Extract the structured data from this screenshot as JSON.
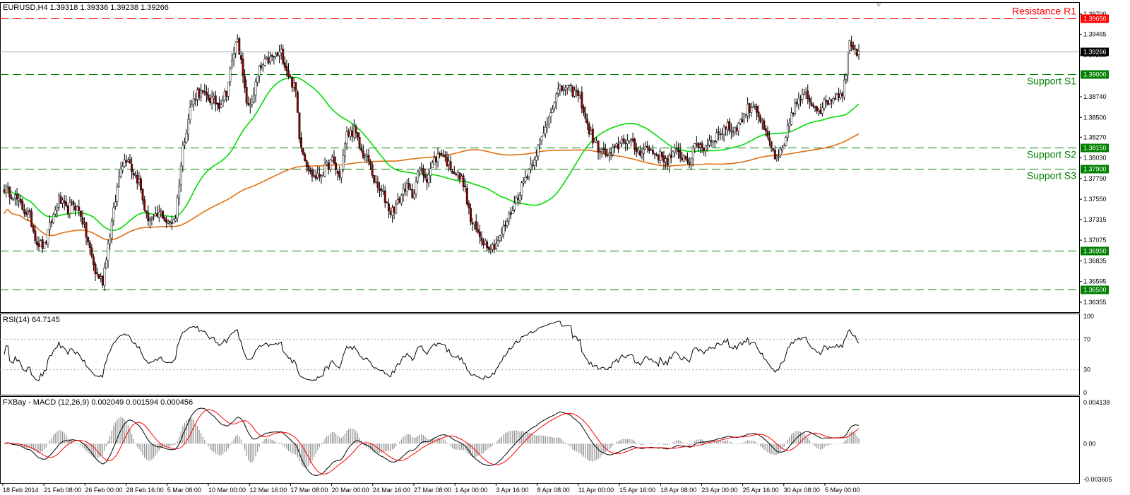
{
  "header": {
    "symbol_line": "EURUSD,H4  1.39318 1.39336 1.39238 1.39266"
  },
  "colors": {
    "resistance": "#ff0000",
    "support": "#008000",
    "ma_fast": "#00dd00",
    "ma_slow": "#e07010",
    "macd": "#000000",
    "signal": "#ff0000",
    "bull": "#ffffff",
    "bear": "#8b0000",
    "wick": "#000000"
  },
  "chart_data": [
    {
      "type": "candlestick",
      "title": "EURUSD,H4",
      "ylim": [
        1.3624,
        1.3983
      ],
      "y_ticks": [
        "1.39700",
        "1.39465",
        "1.39225",
        "1.38740",
        "1.38500",
        "1.38270",
        "1.38030",
        "1.37790",
        "1.37550",
        "1.37315",
        "1.37075",
        "1.36835",
        "1.36595",
        "1.36355"
      ],
      "x_ticks": [
        "18 Feb 2014",
        "21 Feb 08:00",
        "26 Feb 00:00",
        "28 Feb 16:00",
        "5 Mar 08:00",
        "10 Mar 00:00",
        "12 Mar 16:00",
        "17 Mar 08:00",
        "20 Mar 00:00",
        "24 Mar 16:00",
        "27 Mar 08:00",
        "1 Apr 00:00",
        "3 Apr 16:00",
        "8 Apr 08:00",
        "11 Apr 00:00",
        "15 Apr 16:00",
        "18 Apr 08:00",
        "23 Apr 00:00",
        "25 Apr 16:00",
        "30 Apr 08:00",
        "5 May 00:00"
      ],
      "current_price": "1.39266",
      "current_price_value": 1.39266,
      "levels": [
        {
          "name": "Resistance R1",
          "value": 1.3965,
          "label": "1.39650",
          "kind": "resistance"
        },
        {
          "name": "",
          "value": 1.39,
          "label": "1.39000",
          "kind": "support"
        },
        {
          "name": "Support S1",
          "value": 1.39,
          "label": "",
          "kind": "support"
        },
        {
          "name": "Support S2",
          "value": 1.3815,
          "label": "1.38150",
          "kind": "support"
        },
        {
          "name": "Support S3",
          "value": 1.379,
          "label": "1.37900",
          "kind": "support"
        },
        {
          "name": "",
          "value": 1.3695,
          "label": "1.36950",
          "kind": "support"
        },
        {
          "name": "",
          "value": 1.365,
          "label": "1.36500",
          "kind": "support"
        }
      ],
      "anchors": [
        [
          0,
          1.3768
        ],
        [
          5,
          1.376
        ],
        [
          10,
          1.3745
        ],
        [
          14,
          1.3735
        ],
        [
          18,
          1.3705
        ],
        [
          22,
          1.37
        ],
        [
          26,
          1.373
        ],
        [
          30,
          1.3755
        ],
        [
          34,
          1.3742
        ],
        [
          38,
          1.375
        ],
        [
          42,
          1.3738
        ],
        [
          46,
          1.3705
        ],
        [
          50,
          1.367
        ],
        [
          54,
          1.366
        ],
        [
          56,
          1.369
        ],
        [
          60,
          1.374
        ],
        [
          64,
          1.3795
        ],
        [
          68,
          1.3805
        ],
        [
          70,
          1.379
        ],
        [
          74,
          1.3775
        ],
        [
          78,
          1.3735
        ],
        [
          82,
          1.373
        ],
        [
          86,
          1.374
        ],
        [
          90,
          1.3725
        ],
        [
          94,
          1.3735
        ],
        [
          98,
          1.3815
        ],
        [
          102,
          1.386
        ],
        [
          106,
          1.388
        ],
        [
          110,
          1.3875
        ],
        [
          114,
          1.387
        ],
        [
          118,
          1.3865
        ],
        [
          122,
          1.388
        ],
        [
          126,
          1.3925
        ],
        [
          128,
          1.3945
        ],
        [
          132,
          1.388
        ],
        [
          134,
          1.386
        ],
        [
          136,
          1.387
        ],
        [
          140,
          1.3905
        ],
        [
          144,
          1.3915
        ],
        [
          148,
          1.392
        ],
        [
          152,
          1.3925
        ],
        [
          156,
          1.39
        ],
        [
          160,
          1.388
        ],
        [
          162,
          1.383
        ],
        [
          164,
          1.381
        ],
        [
          168,
          1.3785
        ],
        [
          172,
          1.378
        ],
        [
          176,
          1.379
        ],
        [
          180,
          1.38
        ],
        [
          184,
          1.378
        ],
        [
          188,
          1.383
        ],
        [
          192,
          1.3835
        ],
        [
          196,
          1.381
        ],
        [
          200,
          1.38
        ],
        [
          204,
          1.377
        ],
        [
          208,
          1.376
        ],
        [
          212,
          1.374
        ],
        [
          216,
          1.375
        ],
        [
          220,
          1.377
        ],
        [
          224,
          1.376
        ],
        [
          228,
          1.379
        ],
        [
          232,
          1.378
        ],
        [
          236,
          1.38
        ],
        [
          240,
          1.381
        ],
        [
          244,
          1.3795
        ],
        [
          248,
          1.3785
        ],
        [
          252,
          1.3775
        ],
        [
          256,
          1.373
        ],
        [
          260,
          1.3715
        ],
        [
          264,
          1.3705
        ],
        [
          268,
          1.37
        ],
        [
          272,
          1.371
        ],
        [
          276,
          1.373
        ],
        [
          280,
          1.375
        ],
        [
          284,
          1.377
        ],
        [
          288,
          1.379
        ],
        [
          292,
          1.381
        ],
        [
          296,
          1.383
        ],
        [
          300,
          1.386
        ],
        [
          304,
          1.388
        ],
        [
          308,
          1.3885
        ],
        [
          312,
          1.388
        ],
        [
          316,
          1.3875
        ],
        [
          320,
          1.384
        ],
        [
          324,
          1.382
        ],
        [
          328,
          1.381
        ],
        [
          332,
          1.3805
        ],
        [
          336,
          1.3815
        ],
        [
          340,
          1.3825
        ],
        [
          344,
          1.382
        ],
        [
          348,
          1.381
        ],
        [
          352,
          1.3815
        ],
        [
          356,
          1.381
        ],
        [
          360,
          1.3805
        ],
        [
          364,
          1.38
        ],
        [
          368,
          1.381
        ],
        [
          372,
          1.3805
        ],
        [
          376,
          1.38
        ],
        [
          380,
          1.382
        ],
        [
          384,
          1.3815
        ],
        [
          388,
          1.3825
        ],
        [
          392,
          1.383
        ],
        [
          396,
          1.384
        ],
        [
          400,
          1.3835
        ],
        [
          404,
          1.3845
        ],
        [
          408,
          1.386
        ],
        [
          412,
          1.3865
        ],
        [
          416,
          1.384
        ],
        [
          420,
          1.382
        ],
        [
          424,
          1.38
        ],
        [
          428,
          1.3815
        ],
        [
          432,
          1.3855
        ],
        [
          436,
          1.387
        ],
        [
          440,
          1.3875
        ],
        [
          444,
          1.3865
        ],
        [
          448,
          1.386
        ],
        [
          452,
          1.387
        ],
        [
          456,
          1.3875
        ],
        [
          460,
          1.388
        ],
        [
          462,
          1.39
        ],
        [
          464,
          1.3945
        ],
        [
          466,
          1.393
        ],
        [
          468,
          1.3927
        ]
      ],
      "series": [
        {
          "name": "",
          "kind": "moving-average",
          "period": 50,
          "color": "#00dd00"
        },
        {
          "name": "",
          "kind": "moving-average",
          "period": 200,
          "color": "#e07010"
        }
      ]
    },
    {
      "type": "line",
      "title": "RSI(14) 64.7145",
      "ylim": [
        0,
        100
      ],
      "y_ticks": [
        "100",
        "70",
        "30",
        "0"
      ],
      "levels": [
        30,
        70
      ],
      "last_value": 64.7145
    },
    {
      "type": "histogram+line",
      "title": "FXBay - MACD (12,26,9) 0.002049 0.001594 0.000456",
      "ylim": [
        -0.00375,
        0.0045
      ],
      "y_ticks": [
        "0.004138",
        "0.00",
        "-0.003605"
      ],
      "series": [
        {
          "name": "",
          "kind": "macd",
          "color": "#000000"
        },
        {
          "name": "",
          "kind": "signal",
          "color": "#ff0000"
        },
        {
          "name": "",
          "kind": "histogram",
          "color": "#808080"
        }
      ],
      "last_values": {
        "macd": 0.002049,
        "signal": 0.001594,
        "histogram": 0.000456
      }
    }
  ]
}
